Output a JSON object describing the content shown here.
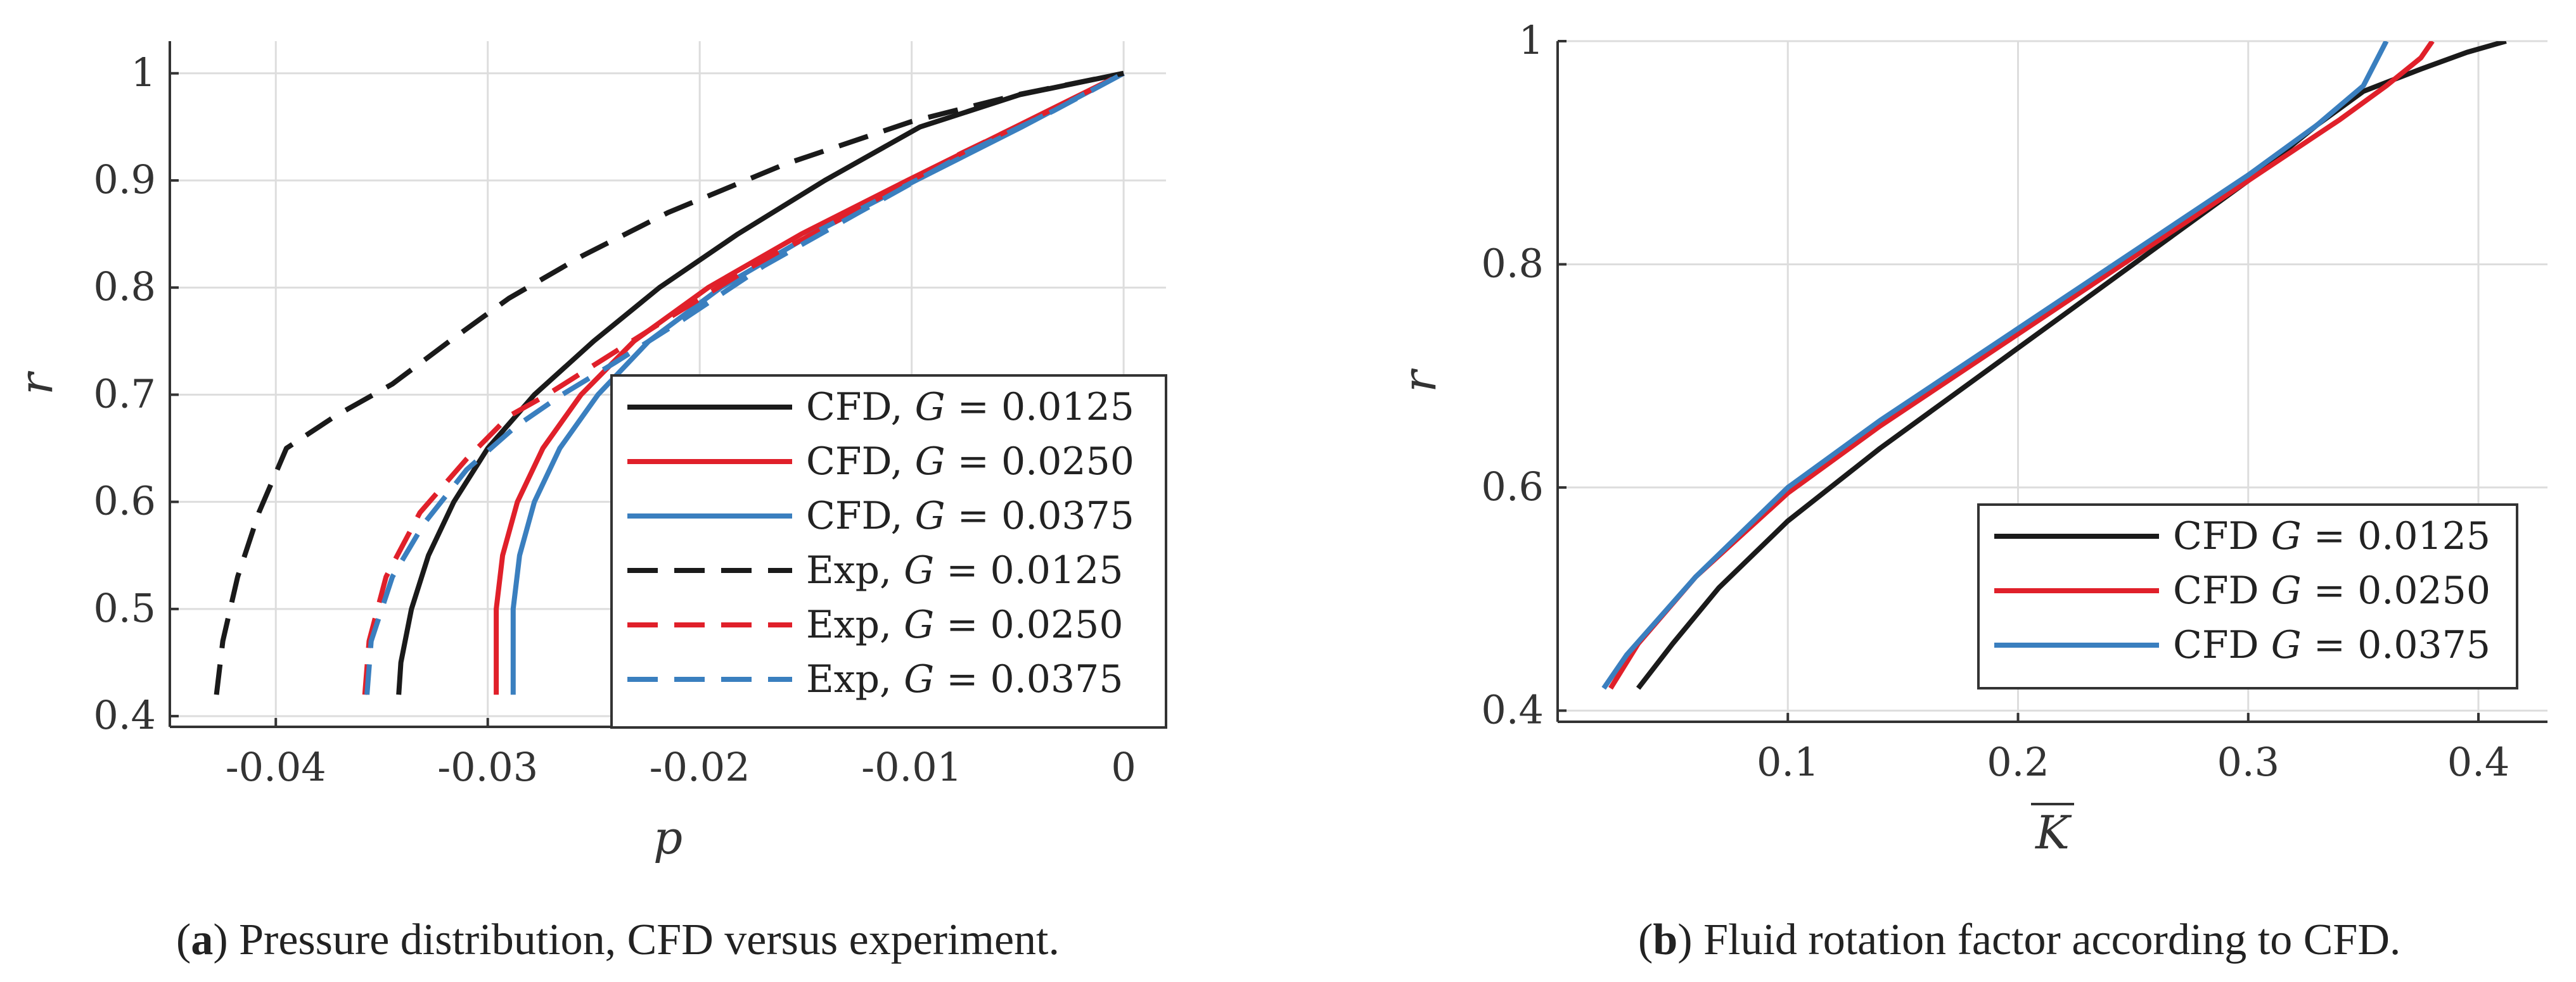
{
  "colors": {
    "black": "#1a1a1a",
    "red": "#e0202a",
    "blue": "#3a7fbf",
    "grid": "#dddddd",
    "axis": "#333333"
  },
  "captions": {
    "a": {
      "letter": "a",
      "text": " Pressure distribution, CFD versus experiment."
    },
    "b": {
      "letter": "b",
      "text": " Fluid rotation factor according to CFD."
    }
  },
  "chart_data": [
    {
      "id": "a",
      "type": "line",
      "title": "",
      "xlabel": "p",
      "ylabel": "r",
      "xlim": [
        -0.045,
        0.002
      ],
      "ylim": [
        0.39,
        1.03
      ],
      "xticks": [
        -0.04,
        -0.03,
        -0.02,
        -0.01,
        0
      ],
      "xtick_labels": [
        "-0.04",
        "-0.03",
        "-0.02",
        "-0.01",
        "0"
      ],
      "yticks": [
        0.4,
        0.5,
        0.6,
        0.7,
        0.8,
        0.9,
        1
      ],
      "ytick_labels": [
        "0.4",
        "0.5",
        "0.6",
        "0.7",
        "0.8",
        "0.9",
        "1"
      ],
      "grid": true,
      "legend_position": "lower-right",
      "series": [
        {
          "name": "CFD, G = 0.0125",
          "legend_prefix": "CFD, ",
          "legend_value": " = 0.0125",
          "color": "black",
          "style": "solid",
          "x": [
            -0.0342,
            -0.0341,
            -0.0336,
            -0.0328,
            -0.0316,
            -0.03,
            -0.0278,
            -0.025,
            -0.0219,
            -0.0182,
            -0.0141,
            -0.0096,
            -0.0049,
            0
          ],
          "y": [
            0.42,
            0.45,
            0.5,
            0.55,
            0.6,
            0.65,
            0.7,
            0.75,
            0.8,
            0.85,
            0.9,
            0.95,
            0.98,
            1.0
          ]
        },
        {
          "name": "CFD, G = 0.0250",
          "legend_prefix": "CFD, ",
          "legend_value": " = 0.0250",
          "color": "red",
          "style": "solid",
          "x": [
            -0.0296,
            -0.0296,
            -0.0293,
            -0.0286,
            -0.0274,
            -0.0256,
            -0.0231,
            -0.0196,
            -0.0152,
            -0.0102,
            -0.0051,
            0
          ],
          "y": [
            0.42,
            0.5,
            0.55,
            0.6,
            0.65,
            0.7,
            0.75,
            0.8,
            0.85,
            0.9,
            0.95,
            1.0
          ]
        },
        {
          "name": "CFD, G = 0.0375",
          "legend_prefix": "CFD, ",
          "legend_value": " = 0.0375",
          "color": "blue",
          "style": "solid",
          "x": [
            -0.0288,
            -0.0288,
            -0.0285,
            -0.0278,
            -0.0266,
            -0.0248,
            -0.0224,
            -0.019,
            -0.0147,
            -0.0098,
            -0.0048,
            0
          ],
          "y": [
            0.42,
            0.5,
            0.55,
            0.6,
            0.65,
            0.7,
            0.75,
            0.8,
            0.85,
            0.9,
            0.95,
            1.0
          ]
        },
        {
          "name": "Exp, G = 0.0125",
          "legend_prefix": "Exp, ",
          "legend_value": " = 0.0125",
          "color": "black",
          "style": "dashed",
          "x": [
            -0.0428,
            -0.0425,
            -0.0418,
            -0.0408,
            -0.0395,
            -0.0372,
            -0.0345,
            -0.0318,
            -0.029,
            -0.0255,
            -0.0215,
            -0.016,
            -0.01,
            -0.005,
            0
          ],
          "y": [
            0.42,
            0.47,
            0.53,
            0.59,
            0.65,
            0.68,
            0.71,
            0.75,
            0.79,
            0.83,
            0.87,
            0.915,
            0.955,
            0.98,
            1.0
          ]
        },
        {
          "name": "Exp, G = 0.0250",
          "legend_prefix": "Exp, ",
          "legend_value": " = 0.0250",
          "color": "red",
          "style": "dashed",
          "x": [
            -0.0358,
            -0.0356,
            -0.0348,
            -0.0332,
            -0.031,
            -0.029,
            -0.0272,
            -0.0248,
            -0.0216,
            -0.0175,
            -0.0128,
            -0.0077,
            -0.0035,
            0
          ],
          "y": [
            0.42,
            0.47,
            0.53,
            0.59,
            0.64,
            0.68,
            0.7,
            0.73,
            0.77,
            0.82,
            0.87,
            0.925,
            0.965,
            1.0
          ]
        },
        {
          "name": "Exp, G = 0.0375",
          "legend_prefix": "Exp, ",
          "legend_value": " = 0.0375",
          "color": "blue",
          "style": "dashed",
          "x": [
            -0.0357,
            -0.0355,
            -0.0345,
            -0.033,
            -0.031,
            -0.0287,
            -0.0265,
            -0.024,
            -0.0208,
            -0.017,
            -0.0125,
            -0.0075,
            -0.0033,
            0
          ],
          "y": [
            0.42,
            0.47,
            0.53,
            0.58,
            0.63,
            0.67,
            0.7,
            0.73,
            0.77,
            0.82,
            0.87,
            0.925,
            0.965,
            1.0
          ]
        }
      ]
    },
    {
      "id": "b",
      "type": "line",
      "title": "",
      "xlabel": "K",
      "xlabel_overline": true,
      "ylabel": "r",
      "xlim": [
        0.0,
        0.43
      ],
      "ylim": [
        0.39,
        1.0
      ],
      "xticks": [
        0.1,
        0.2,
        0.3,
        0.4
      ],
      "xtick_labels": [
        "0.1",
        "0.2",
        "0.3",
        "0.4"
      ],
      "yticks": [
        0.4,
        0.6,
        0.8,
        1
      ],
      "ytick_labels": [
        "0.4",
        "0.6",
        "0.8",
        "1"
      ],
      "grid": true,
      "legend_position": "lower-right",
      "series": [
        {
          "name": "CFD G = 0.0125",
          "legend_prefix": "CFD ",
          "legend_value": " = 0.0125",
          "color": "black",
          "style": "solid",
          "x": [
            0.035,
            0.05,
            0.07,
            0.1,
            0.14,
            0.18,
            0.22,
            0.26,
            0.3,
            0.33,
            0.35,
            0.375,
            0.395,
            0.412
          ],
          "y": [
            0.42,
            0.46,
            0.51,
            0.57,
            0.635,
            0.695,
            0.755,
            0.815,
            0.875,
            0.925,
            0.955,
            0.975,
            0.99,
            1.0
          ]
        },
        {
          "name": "CFD G = 0.0250",
          "legend_prefix": "CFD ",
          "legend_value": " = 0.0250",
          "color": "red",
          "style": "solid",
          "x": [
            0.023,
            0.035,
            0.06,
            0.1,
            0.14,
            0.18,
            0.22,
            0.26,
            0.3,
            0.34,
            0.36,
            0.375,
            0.38
          ],
          "y": [
            0.42,
            0.46,
            0.52,
            0.595,
            0.655,
            0.71,
            0.765,
            0.82,
            0.875,
            0.93,
            0.96,
            0.985,
            1.0
          ]
        },
        {
          "name": "CFD G = 0.0375",
          "legend_prefix": "CFD ",
          "legend_value": " = 0.0375",
          "color": "blue",
          "style": "solid",
          "x": [
            0.02,
            0.03,
            0.06,
            0.1,
            0.14,
            0.18,
            0.22,
            0.26,
            0.3,
            0.33,
            0.35,
            0.36
          ],
          "y": [
            0.42,
            0.45,
            0.52,
            0.6,
            0.66,
            0.715,
            0.77,
            0.825,
            0.88,
            0.925,
            0.96,
            1.0
          ]
        }
      ]
    }
  ]
}
